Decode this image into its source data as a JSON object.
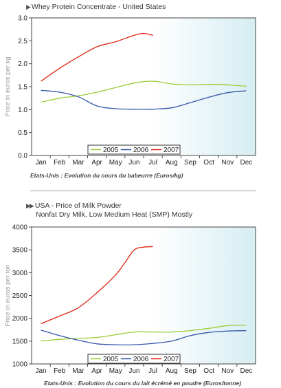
{
  "charts": [
    {
      "id": "c1",
      "title": "Whey Protein Concentrate - United States",
      "subtitle": "",
      "caption": "Etats-Unis : Evolution du cours du babeurre (Euros/kg)",
      "ylabel": "Price in euros per kg",
      "categories": [
        "Jan",
        "Feb",
        "Mar",
        "Apr",
        "May",
        "Jun",
        "Jul",
        "Aug",
        "Sep",
        "Oct",
        "Nov",
        "Dec"
      ],
      "yticks": [
        "0.0",
        "0.5",
        "1.0",
        "1.5",
        "2.0",
        "2.5",
        "3.0"
      ],
      "legend": [
        "2005",
        "2006",
        "2007"
      ],
      "colors": {
        "2005": "#99cc33",
        "2006": "#3355aa",
        "2007": "#dd2211"
      }
    },
    {
      "id": "c2",
      "title": "USA - Price of Milk Powder",
      "subtitle": "Nonfat Dry Milk, Low Medium Heat (SMP) Mostly",
      "caption": "Etats-Unis : Evolution du cours du lait écrémé en poudre (Euros/tonne)",
      "ylabel": "Price in euros per ton",
      "categories": [
        "Jan",
        "Feb",
        "Mar",
        "Apr",
        "May",
        "Jun",
        "Jul",
        "Aug",
        "Sep",
        "Oct",
        "Nov",
        "Dec"
      ],
      "yticks": [
        "1000",
        "1500",
        "2000",
        "2500",
        "3000",
        "3500",
        "4000"
      ],
      "legend": [
        "2005",
        "2006",
        "2007"
      ],
      "colors": {
        "2005": "#99cc33",
        "2006": "#3355aa",
        "2007": "#dd2211"
      }
    }
  ],
  "chart_data": [
    {
      "type": "line",
      "title": "Whey Protein Concentrate - United States",
      "xlabel": "",
      "ylabel": "Price in euros per kg",
      "ylim": [
        0,
        3
      ],
      "x": [
        "Jan",
        "Feb",
        "Mar",
        "Apr",
        "May",
        "Jun",
        "Jul",
        "Aug",
        "Sep",
        "Oct",
        "Nov",
        "Dec"
      ],
      "grid": false,
      "legend_position": "bottom-center",
      "series": [
        {
          "name": "2005",
          "x": [
            0,
            1,
            2,
            3,
            4,
            5,
            6,
            7,
            8,
            9,
            10,
            11
          ],
          "values": [
            1.16,
            1.25,
            1.3,
            1.38,
            1.48,
            1.58,
            1.62,
            1.56,
            1.54,
            1.55,
            1.54,
            1.51
          ]
        },
        {
          "name": "2006",
          "x": [
            0,
            1,
            2,
            3,
            4,
            5,
            6,
            7,
            8,
            9,
            10,
            11
          ],
          "values": [
            1.42,
            1.38,
            1.28,
            1.08,
            1.02,
            1.01,
            1.01,
            1.04,
            1.15,
            1.27,
            1.37,
            1.41
          ]
        },
        {
          "name": "2007",
          "x": [
            0,
            1,
            2,
            3,
            4,
            5,
            5.5,
            6
          ],
          "values": [
            1.62,
            1.9,
            2.15,
            2.37,
            2.48,
            2.62,
            2.66,
            2.62
          ]
        }
      ]
    },
    {
      "type": "line",
      "title": "USA - Price of Milk Powder",
      "subtitle": "Nonfat Dry Milk, Low Medium Heat (SMP) Mostly",
      "xlabel": "",
      "ylabel": "Price in euros per ton",
      "ylim": [
        1000,
        4000
      ],
      "x": [
        "Jan",
        "Feb",
        "Mar",
        "Apr",
        "May",
        "Jun",
        "Jul",
        "Aug",
        "Sep",
        "Oct",
        "Nov",
        "Dec"
      ],
      "grid": false,
      "legend_position": "bottom-center",
      "series": [
        {
          "name": "2005",
          "x": [
            0,
            1,
            2,
            3,
            4,
            5,
            6,
            7,
            8,
            9,
            10,
            11
          ],
          "values": [
            1500,
            1540,
            1560,
            1580,
            1640,
            1700,
            1700,
            1700,
            1730,
            1780,
            1840,
            1850
          ]
        },
        {
          "name": "2006",
          "x": [
            0,
            1,
            2,
            3,
            4,
            5,
            6,
            7,
            8,
            9,
            10,
            11
          ],
          "values": [
            1740,
            1620,
            1520,
            1440,
            1420,
            1420,
            1450,
            1500,
            1620,
            1690,
            1720,
            1730
          ]
        },
        {
          "name": "2007",
          "x": [
            0,
            1,
            2,
            3,
            4,
            4.5,
            5,
            5.5,
            6
          ],
          "values": [
            1880,
            2050,
            2230,
            2560,
            2950,
            3220,
            3500,
            3560,
            3570
          ]
        }
      ]
    }
  ]
}
